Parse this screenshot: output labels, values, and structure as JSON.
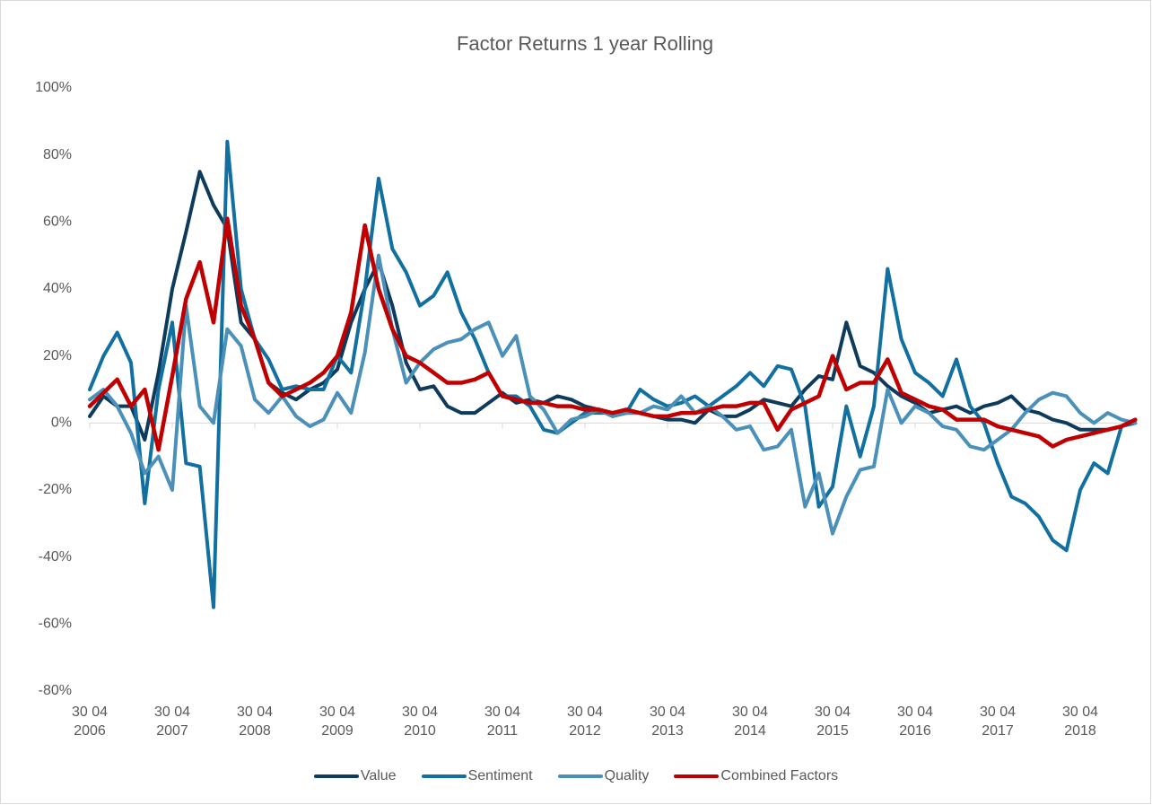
{
  "chart_data": {
    "type": "line",
    "title": "Factor Returns 1 year Rolling",
    "categories": [
      "30 04 2006",
      null,
      null,
      null,
      null,
      null,
      "30 04 2007",
      null,
      null,
      null,
      null,
      null,
      "30 04 2008",
      null,
      null,
      null,
      null,
      null,
      "30 04 2009",
      null,
      null,
      null,
      null,
      null,
      "30 04 2010",
      null,
      null,
      null,
      null,
      null,
      "30 04 2011",
      null,
      null,
      null,
      null,
      null,
      "30 04 2012",
      null,
      null,
      null,
      null,
      null,
      "30 04 2013",
      null,
      null,
      null,
      null,
      null,
      "30 04 2014",
      null,
      null,
      null,
      null,
      null,
      "30 04 2015",
      null,
      null,
      null,
      null,
      null,
      "30 04 2016",
      null,
      null,
      null,
      null,
      null,
      "30 04 2017",
      null,
      null,
      null,
      null,
      null,
      "30 04 2018",
      null,
      null,
      null,
      null
    ],
    "series": [
      {
        "name": "Value",
        "color": "#0e3b5c",
        "values": [
          2,
          8,
          5,
          5,
          -5,
          15,
          40,
          57,
          75,
          65,
          58,
          30,
          25,
          12,
          9,
          7,
          10,
          12,
          16,
          30,
          40,
          48,
          35,
          18,
          10,
          11,
          5,
          3,
          3,
          6,
          9,
          6,
          7,
          6,
          8,
          7,
          5,
          4,
          2,
          3,
          3,
          2,
          1,
          1,
          0,
          4,
          2,
          2,
          4,
          7,
          6,
          5,
          10,
          14,
          13,
          30,
          17,
          15,
          11,
          8,
          6,
          3,
          4,
          5,
          3,
          5,
          6,
          8,
          4,
          3,
          1,
          0,
          -2,
          -2,
          -2,
          -1,
          1
        ]
      },
      {
        "name": "Sentiment",
        "color": "#1170a0",
        "values": [
          10,
          20,
          27,
          18,
          -24,
          10,
          30,
          -12,
          -13,
          -55,
          84,
          40,
          25,
          19,
          10,
          11,
          10,
          10,
          20,
          15,
          40,
          73,
          52,
          45,
          35,
          38,
          45,
          33,
          25,
          15,
          8,
          8,
          5,
          -2,
          -3,
          0,
          3,
          3,
          3,
          3,
          10,
          7,
          5,
          6,
          8,
          5,
          8,
          11,
          15,
          11,
          17,
          16,
          5,
          -25,
          -19,
          5,
          -10,
          5,
          46,
          25,
          15,
          12,
          8,
          19,
          5,
          0,
          -12,
          -22,
          -24,
          -28,
          -35,
          -38,
          -20,
          -12,
          -15,
          -1,
          0
        ]
      },
      {
        "name": "Quality",
        "color": "#4a90b8",
        "values": [
          7,
          10,
          5,
          -3,
          -15,
          -10,
          -20,
          35,
          5,
          0,
          28,
          23,
          7,
          3,
          8,
          2,
          -1,
          1,
          9,
          3,
          21,
          50,
          28,
          12,
          18,
          22,
          24,
          25,
          28,
          30,
          20,
          26,
          8,
          4,
          -3,
          1,
          2,
          4,
          2,
          3,
          3,
          5,
          4,
          8,
          3,
          5,
          2,
          -2,
          -1,
          -8,
          -7,
          -2,
          -25,
          -15,
          -33,
          -22,
          -14,
          -13,
          10,
          0,
          5,
          3,
          -1,
          -2,
          -7,
          -8,
          -5,
          -2,
          3,
          7,
          9,
          8,
          3,
          0,
          3,
          1,
          0
        ]
      },
      {
        "name": "Combined Factors",
        "color": "#c00000",
        "values": [
          5,
          9,
          13,
          5,
          10,
          -8,
          14,
          37,
          48,
          30,
          61,
          35,
          25,
          12,
          8,
          10,
          12,
          15,
          20,
          33,
          59,
          40,
          28,
          20,
          18,
          15,
          12,
          12,
          13,
          15,
          8,
          7,
          6,
          6,
          5,
          5,
          4,
          4,
          3,
          4,
          3,
          2,
          2,
          3,
          3,
          4,
          5,
          5,
          6,
          6,
          -2,
          4,
          6,
          8,
          20,
          10,
          12,
          12,
          19,
          9,
          7,
          5,
          4,
          1,
          1,
          1,
          -1,
          -2,
          -3,
          -4,
          -7,
          -5,
          -4,
          -3,
          -2,
          -1,
          1
        ]
      }
    ],
    "ylim": [
      -80,
      100
    ],
    "yticks": [
      {
        "value": -80,
        "label": "-80%"
      },
      {
        "value": -60,
        "label": "-60%"
      },
      {
        "value": -40,
        "label": "-40%"
      },
      {
        "value": -20,
        "label": "-20%"
      },
      {
        "value": 0,
        "label": "0%"
      },
      {
        "value": 20,
        "label": "20%"
      },
      {
        "value": 40,
        "label": "40%"
      },
      {
        "value": 60,
        "label": "60%"
      },
      {
        "value": 80,
        "label": "80%"
      },
      {
        "value": 100,
        "label": "100%"
      }
    ],
    "grid": false,
    "legend": "bottom"
  }
}
